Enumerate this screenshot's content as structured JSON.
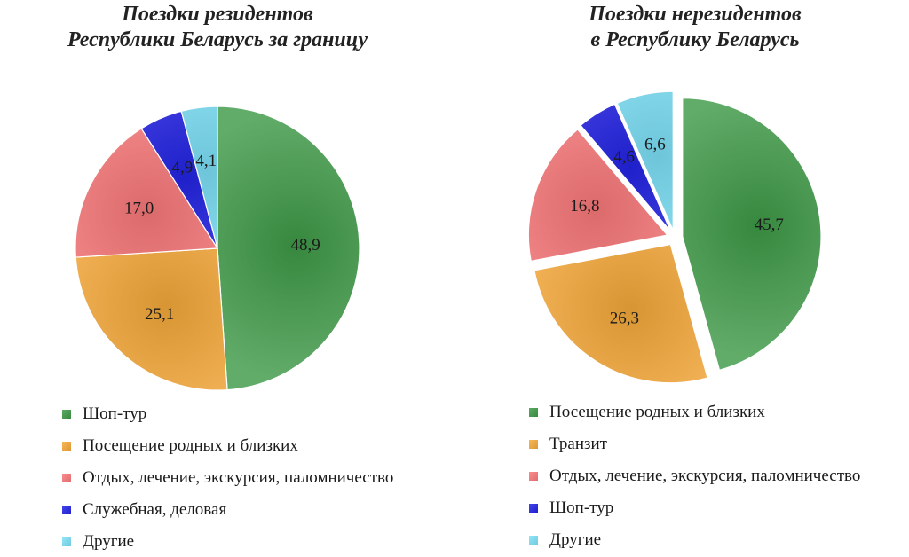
{
  "chart_data": [
    {
      "type": "pie",
      "title_lines": [
        "Поездки резидентов",
        "Республики Беларусь за границу"
      ],
      "start_angle_deg": 0,
      "explode": false,
      "slices": [
        {
          "label": "Шоп-тур",
          "value": 48.9,
          "value_label": "48,9",
          "color": "#3f9a48"
        },
        {
          "label": "Посещение родных и близких",
          "value": 25.1,
          "value_label": "25,1",
          "color": "#f6a93a"
        },
        {
          "label": "Отдых, лечение, экскурсия, паломничество",
          "value": 17.0,
          "value_label": "17,0",
          "color": "#f9787a"
        },
        {
          "label": "Служебная, деловая",
          "value": 4.9,
          "value_label": "4,9",
          "color": "#2424e6"
        },
        {
          "label": "Другие",
          "value": 4.1,
          "value_label": "4,1",
          "color": "#7de0f7"
        }
      ],
      "legend_order": [
        0,
        1,
        2,
        3,
        4
      ]
    },
    {
      "type": "pie",
      "title_lines": [
        "Поездки нерезидентов",
        "в Республику Беларусь"
      ],
      "start_angle_deg": 0,
      "explode": true,
      "slices": [
        {
          "label": "Посещение родных и близких",
          "value": 45.7,
          "value_label": "45,7",
          "color": "#3f9a48"
        },
        {
          "label": "Транзит",
          "value": 26.3,
          "value_label": "26,3",
          "color": "#f6a93a"
        },
        {
          "label": "Отдых, лечение, экскурсия, паломничество",
          "value": 16.8,
          "value_label": "16,8",
          "color": "#f9787a"
        },
        {
          "label": "Шоп-тур",
          "value": 4.6,
          "value_label": "4,6",
          "color": "#2424e6"
        },
        {
          "label": "Другие",
          "value": 6.6,
          "value_label": "6,6",
          "color": "#7de0f7"
        }
      ],
      "legend_order": [
        0,
        1,
        2,
        3,
        4
      ]
    }
  ]
}
